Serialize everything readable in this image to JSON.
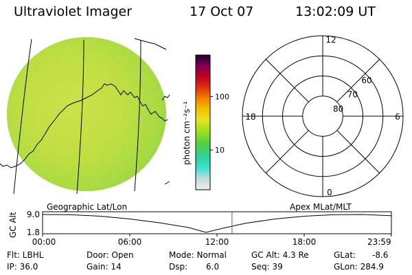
{
  "header": {
    "instrument": "Ultraviolet Imager",
    "date": "17 Oct 07",
    "time": "13:02:09 UT"
  },
  "colorbar": {
    "unit": "photon cm⁻²s⁻¹",
    "ticks": [
      {
        "label": "100",
        "value": 100
      },
      {
        "label": "10",
        "value": 10
      }
    ],
    "range": [
      1.8,
      600
    ],
    "scale": "log",
    "colors": [
      "#e8e8e8",
      "#c8dcdc",
      "#40e0d0",
      "#20c8a0",
      "#50d040",
      "#a0e020",
      "#e8e020",
      "#f0c000",
      "#f08000",
      "#e03010",
      "#c00020",
      "#800050",
      "#400040",
      "#200030"
    ]
  },
  "polar_plot": {
    "mlt_labels": [
      {
        "label": "12",
        "mlt": 12
      },
      {
        "label": "18",
        "mlt": 18
      },
      {
        "label": "6",
        "mlt": 6
      },
      {
        "label": "0",
        "mlt": 0
      }
    ],
    "lat_labels": [
      {
        "label": "60",
        "lat": 60
      },
      {
        "label": "70",
        "lat": 70
      },
      {
        "label": "80",
        "lat": 80
      }
    ],
    "rings": [
      50,
      60,
      70,
      80
    ]
  },
  "timeline": {
    "left_caption": "Geographic Lat/Lon",
    "right_caption": "Apex MLat/MLT",
    "axis_label": "GC Alt",
    "y_ticks": [
      "9.0",
      "1.8"
    ],
    "x_ticks": [
      "00:00",
      "06:00",
      "12:00",
      "18:00",
      "23:59"
    ],
    "y_range": [
      1.8,
      9.0
    ],
    "current_time_marker": "13:02",
    "marker_color": "#e03030",
    "altitude_curve": [
      {
        "t": 0.0,
        "alt": 9.0
      },
      {
        "t": 2.0,
        "alt": 8.9
      },
      {
        "t": 4.0,
        "alt": 8.3
      },
      {
        "t": 6.0,
        "alt": 7.2
      },
      {
        "t": 8.0,
        "alt": 5.7
      },
      {
        "t": 10.0,
        "alt": 3.8
      },
      {
        "t": 11.25,
        "alt": 1.8
      },
      {
        "t": 12.5,
        "alt": 3.6
      },
      {
        "t": 14.0,
        "alt": 5.5
      },
      {
        "t": 16.0,
        "alt": 7.2
      },
      {
        "t": 18.0,
        "alt": 8.3
      },
      {
        "t": 20.0,
        "alt": 8.9
      },
      {
        "t": 22.0,
        "alt": 9.0
      },
      {
        "t": 23.98,
        "alt": 8.5
      }
    ]
  },
  "status": {
    "filter": "Flt: LBHL",
    "ip": "IP: 36.0",
    "door": "Door: Open",
    "gain": "Gain: 14",
    "mode": "Mode: Normal",
    "dsp_label": "Dsp:",
    "dsp_value": "6.0",
    "gc_alt": "GC Alt: 4.3 Re",
    "seq": "Seq: 39",
    "glat_label": "GLat:",
    "glat_value": "-8.6",
    "glon": "GLon: 284.9"
  }
}
